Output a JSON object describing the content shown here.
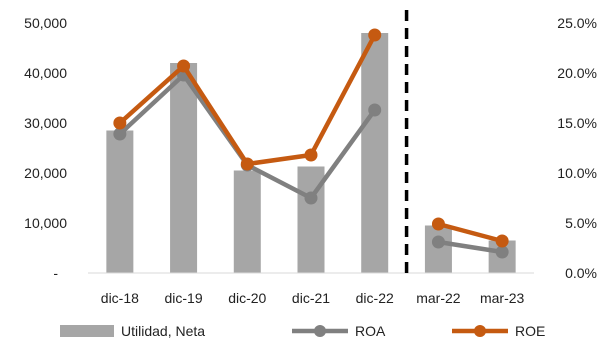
{
  "chart_data": {
    "type": "bar",
    "categories": [
      "dic-18",
      "dic-19",
      "dic-20",
      "dic-21",
      "dic-22",
      "mar-22",
      "mar-23"
    ],
    "series": [
      {
        "name": "Utilidad, Neta",
        "type": "bar",
        "axis": "left",
        "color": "#a6a6a6",
        "values": [
          28500,
          42000,
          20500,
          21300,
          48000,
          9500,
          6500
        ]
      },
      {
        "name": "ROA",
        "type": "line",
        "axis": "right",
        "color": "#808080",
        "values": [
          0.139,
          0.198,
          0.108,
          0.075,
          0.163,
          0.031,
          0.021
        ]
      },
      {
        "name": "ROE",
        "type": "line",
        "axis": "right",
        "color": "#c55a11",
        "values": [
          0.15,
          0.207,
          0.109,
          0.118,
          0.238,
          0.049,
          0.032
        ]
      }
    ],
    "left_axis": {
      "ylim": [
        0,
        50000
      ],
      "ticks": [
        0,
        10000,
        20000,
        30000,
        40000,
        50000
      ],
      "tick_labels": [
        "-",
        "10,000",
        "20,000",
        "30,000",
        "40,000",
        "50,000"
      ]
    },
    "right_axis": {
      "ylim": [
        0,
        0.25
      ],
      "ticks": [
        0,
        0.05,
        0.1,
        0.15,
        0.2,
        0.25
      ],
      "tick_labels": [
        "0.0%",
        "5.0%",
        "10.0%",
        "15.0%",
        "20.0%",
        "25.0%"
      ]
    },
    "line_segments": [
      [
        0,
        1,
        2,
        3,
        4
      ],
      [
        5,
        6
      ]
    ],
    "divider_after_category": 4,
    "divider_style": "dashed",
    "grid": false,
    "legend_position": "bottom"
  }
}
